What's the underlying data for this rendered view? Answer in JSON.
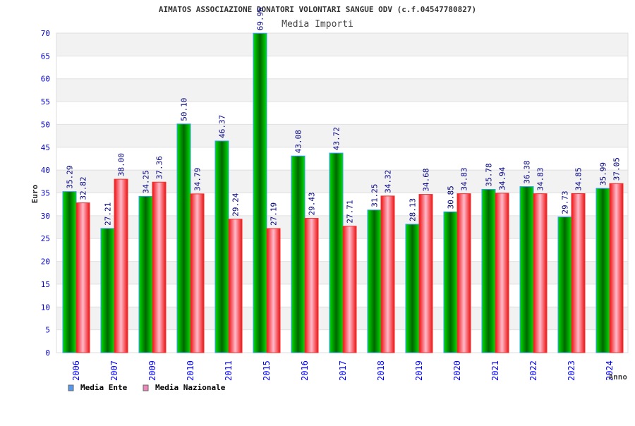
{
  "chart_data": {
    "type": "bar",
    "title": "AIMATOS ASSOCIAZIONE DONATORI VOLONTARI SANGUE ODV (c.f.04547780827)",
    "subtitle": "Media Importi",
    "xlabel": "Anno",
    "ylabel": "Euro",
    "ylim": [
      0,
      70
    ],
    "yticks": [
      0,
      5,
      10,
      15,
      20,
      25,
      30,
      35,
      40,
      45,
      50,
      55,
      60,
      65,
      70
    ],
    "categories": [
      "2006",
      "2007",
      "2009",
      "2010",
      "2011",
      "2015",
      "2016",
      "2017",
      "2018",
      "2019",
      "2020",
      "2021",
      "2022",
      "2023",
      "2024"
    ],
    "series": [
      {
        "name": "Media Ente",
        "color": "#00cc00",
        "legend_color": "#5599ee",
        "values": [
          35.29,
          27.21,
          34.25,
          50.1,
          46.37,
          69.96,
          43.08,
          43.72,
          31.25,
          28.13,
          30.85,
          35.78,
          36.38,
          29.73,
          35.99
        ],
        "labels": [
          "35.29",
          "27.21",
          "34.25",
          "50.10",
          "46.37",
          "69.96",
          "43.08",
          "43.72",
          "31.25",
          "28.13",
          "30.85",
          "35.78",
          "36.38",
          "29.73",
          "35.99"
        ]
      },
      {
        "name": "Media Nazionale",
        "color": "#ee2222",
        "legend_color": "#ee88bb",
        "values": [
          32.82,
          38.0,
          37.36,
          34.79,
          29.24,
          27.19,
          29.43,
          27.71,
          34.32,
          34.68,
          34.83,
          34.94,
          34.83,
          34.85,
          37.05
        ],
        "labels": [
          "32.82",
          "38.00",
          "37.36",
          "34.79",
          "29.24",
          "27.19",
          "29.43",
          "27.71",
          "34.32",
          "34.68",
          "34.83",
          "34.94",
          "34.83",
          "34.85",
          "37.05"
        ]
      }
    ],
    "legend_position": "bottom-left",
    "grid": true
  }
}
